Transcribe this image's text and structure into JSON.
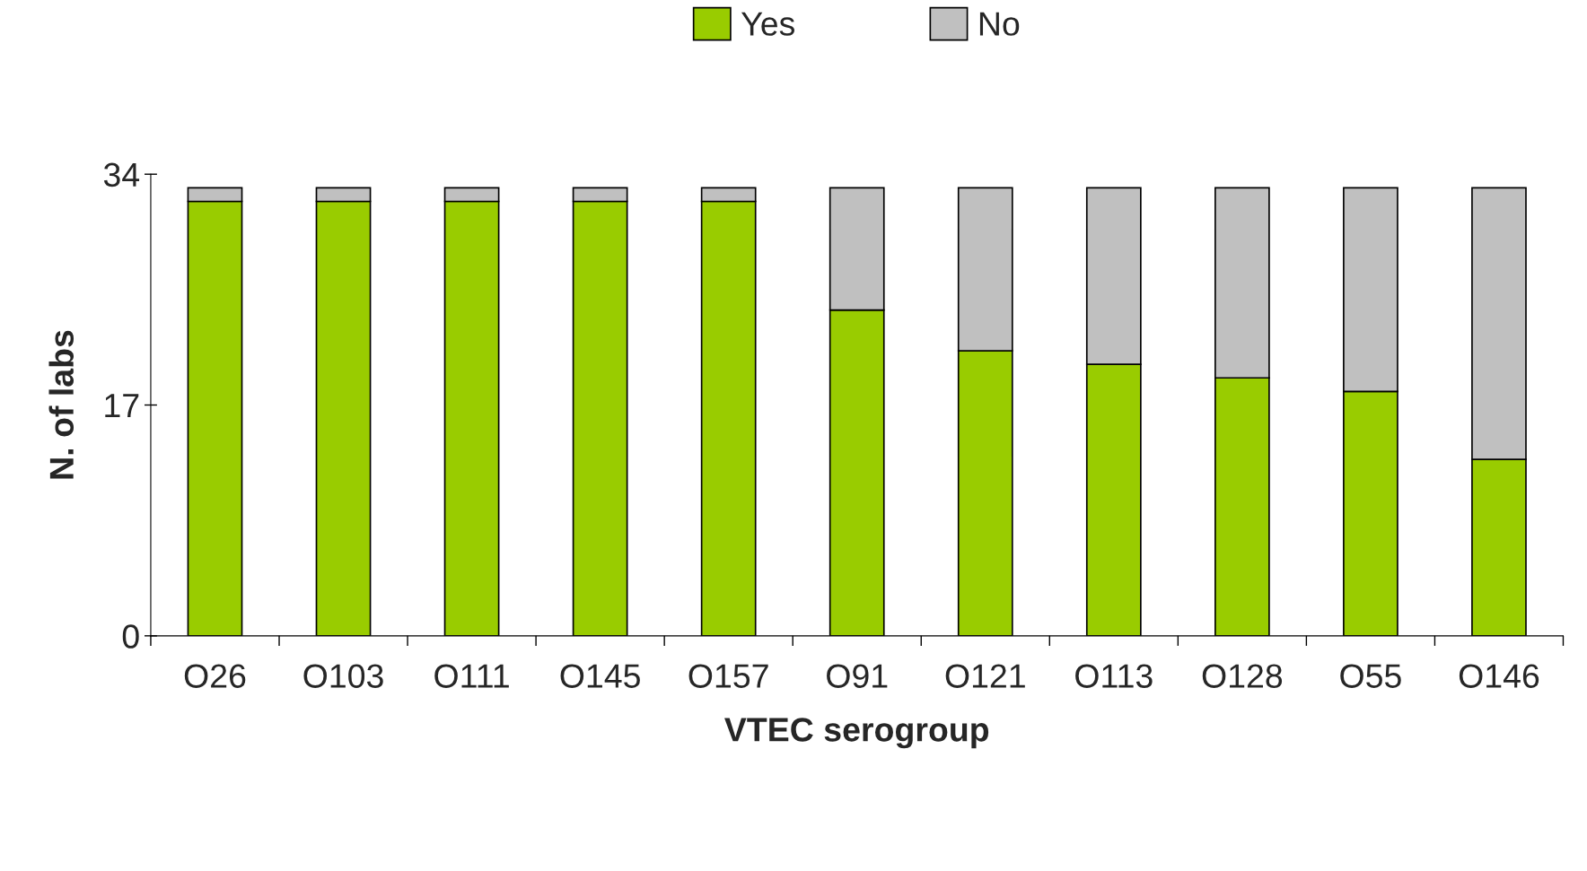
{
  "chart_data": {
    "type": "bar",
    "stacked": true,
    "xlabel": "VTEC serogroup",
    "ylabel": "N. of labs",
    "categories": [
      "O26",
      "O103",
      "O111",
      "O145",
      "O157",
      "O91",
      "O121",
      "O113",
      "O128",
      "O55",
      "O146"
    ],
    "series": [
      {
        "name": "Yes",
        "color": "#99cc00",
        "values": [
          32,
          32,
          32,
          32,
          32,
          24,
          21,
          20,
          19,
          18,
          13
        ]
      },
      {
        "name": "No",
        "color": "#c0c0c0",
        "values": [
          1,
          1,
          1,
          1,
          1,
          9,
          12,
          13,
          14,
          15,
          20
        ]
      }
    ],
    "ylim": [
      0,
      34
    ],
    "yticks": [
      0,
      17,
      34
    ],
    "grid": false,
    "legend": "top"
  }
}
